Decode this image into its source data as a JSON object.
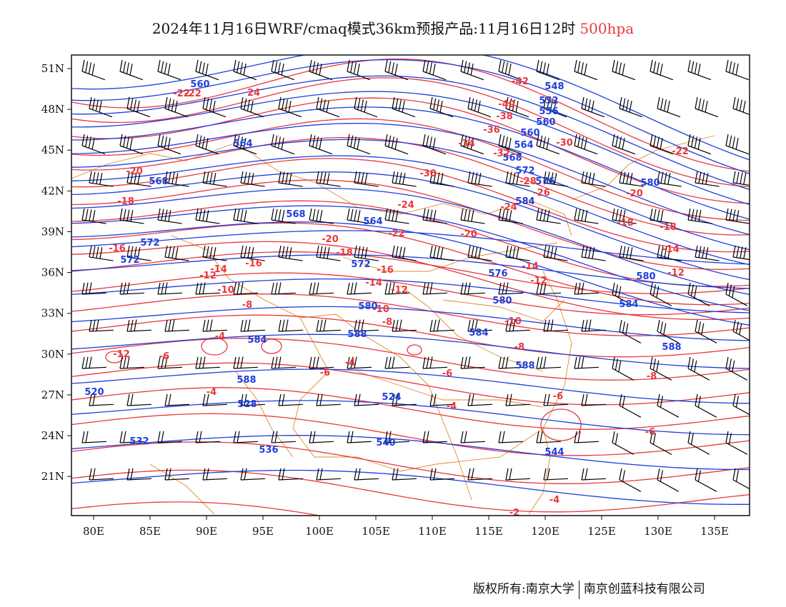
{
  "title": {
    "main": "2024年11月16日WRF/cmaq模式36km预报产品:11月16日12时",
    "level": "500hpa"
  },
  "colors": {
    "temperature": "#e8383d",
    "height": "#1f3fdc",
    "border": "#e08a2c",
    "barb": "#000000"
  },
  "axes": {
    "lon_ticks": [
      "80E",
      "85E",
      "90E",
      "95E",
      "100E",
      "105E",
      "110E",
      "115E",
      "120E",
      "125E",
      "130E",
      "135E"
    ],
    "lat_ticks": [
      "51N",
      "48N",
      "45N",
      "42N",
      "39N",
      "36N",
      "33N",
      "30N",
      "27N",
      "24N",
      "21N"
    ]
  },
  "height_labels": [
    "560",
    "564",
    "568",
    "568",
    "564",
    "572",
    "572",
    "572",
    "576",
    "580",
    "580",
    "580",
    "584",
    "584",
    "584",
    "588",
    "588",
    "588",
    "588",
    "520",
    "524",
    "528",
    "532",
    "536",
    "540",
    "544",
    "548",
    "552",
    "556",
    "560",
    "560",
    "564",
    "568",
    "572",
    "576",
    "580",
    "584"
  ],
  "temp_labels": [
    "-42",
    "-40",
    "-38",
    "-36",
    "-34",
    "-32",
    "-30",
    "-30",
    "-28",
    "-26",
    "-24",
    "-24",
    "-22",
    "-22",
    "-22",
    "-20",
    "-20",
    "-20",
    "-20",
    "-18",
    "-18",
    "-18",
    "-18",
    "-16",
    "-16",
    "-16",
    "-14",
    "-14",
    "-14",
    "-14",
    "-12",
    "-12",
    "-12",
    "-12",
    "-10",
    "-10",
    "-10",
    "-8",
    "-8",
    "-8",
    "-8",
    "-6",
    "-6",
    "-6",
    "-6",
    "-6",
    "-4",
    "-4",
    "-4",
    "-4",
    "-4",
    "-2",
    "-22",
    "24",
    "-12"
  ],
  "copyright": {
    "left": "版权所有:南京大学",
    "right": "南京创蓝科技有限公司"
  }
}
